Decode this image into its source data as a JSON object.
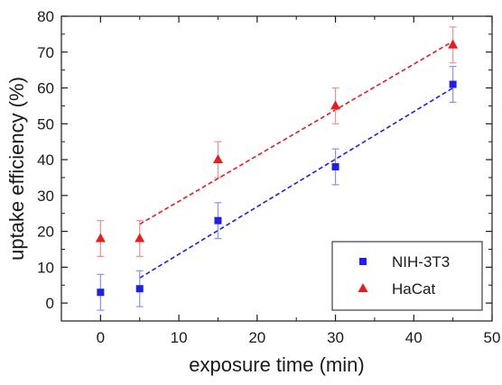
{
  "chart_data": {
    "type": "scatter",
    "xlabel": "exposure time (min)",
    "ylabel": "uptake efficiency (%)",
    "xlim": [
      -5,
      50
    ],
    "ylim": [
      -5,
      80
    ],
    "xticks": [
      0,
      10,
      20,
      30,
      40,
      50
    ],
    "yticks": [
      0,
      10,
      20,
      30,
      40,
      50,
      60,
      70,
      80
    ],
    "grid": false,
    "legend_position": "bottom-right",
    "series": [
      {
        "name": "NIH-3T3",
        "marker": "square",
        "color": "#1f1fe6",
        "error_color": "#8f8ff0",
        "x": [
          0,
          5,
          15,
          30,
          45
        ],
        "y": [
          3,
          4,
          23,
          38,
          61
        ],
        "yerr": [
          5,
          5,
          5,
          5,
          5
        ],
        "fit": {
          "x": [
            5,
            45
          ],
          "y": [
            7,
            60
          ]
        }
      },
      {
        "name": "HaCat",
        "marker": "triangle",
        "color": "#e61e1e",
        "error_color": "#f09090",
        "x": [
          0,
          5,
          15,
          30,
          45
        ],
        "y": [
          18,
          18,
          40,
          55,
          72
        ],
        "yerr": [
          5,
          5,
          5,
          5,
          5
        ],
        "fit": {
          "x": [
            5,
            45
          ],
          "y": [
            22,
            73
          ]
        }
      }
    ]
  }
}
